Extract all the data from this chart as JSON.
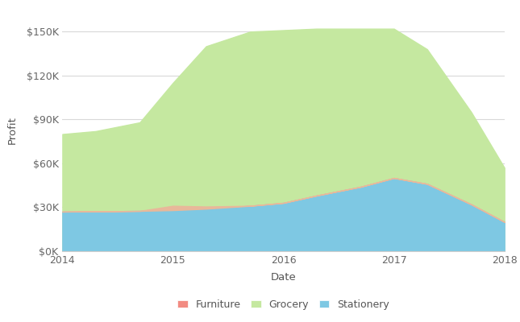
{
  "xlabel": "Date",
  "ylabel": "Profit",
  "background_color": "#ffffff",
  "grid_color": "#d8d8d8",
  "x": [
    2014.0,
    2014.3,
    2014.7,
    2015.0,
    2015.3,
    2015.7,
    2016.0,
    2016.3,
    2016.7,
    2017.0,
    2017.3,
    2017.7,
    2018.0
  ],
  "furniture": [
    0,
    0,
    0,
    3000,
    1500,
    0,
    0,
    0,
    0,
    0,
    0,
    0,
    0
  ],
  "grocery": [
    80000,
    82000,
    88000,
    115000,
    140000,
    150000,
    151000,
    152000,
    152000,
    152000,
    138000,
    95000,
    57000
  ],
  "stationery": [
    27000,
    27200,
    27500,
    28000,
    29000,
    31000,
    33000,
    38000,
    44000,
    50000,
    46000,
    32000,
    20000
  ],
  "furniture_color": "#e8b89a",
  "grocery_color": "#c5e8a0",
  "stationery_color": "#7ec8e3",
  "ylim": [
    0,
    165000
  ],
  "yticks": [
    0,
    30000,
    60000,
    90000,
    120000,
    150000
  ],
  "ytick_labels": [
    "$0K",
    "$30K",
    "$60K",
    "$90K",
    "$120K",
    "$150K"
  ],
  "xticks": [
    2014,
    2015,
    2016,
    2017,
    2018
  ],
  "legend_labels": [
    "Furniture",
    "Grocery",
    "Stationery"
  ],
  "legend_colors": [
    "#f28b82",
    "#c5e8a0",
    "#7ec8e3"
  ]
}
